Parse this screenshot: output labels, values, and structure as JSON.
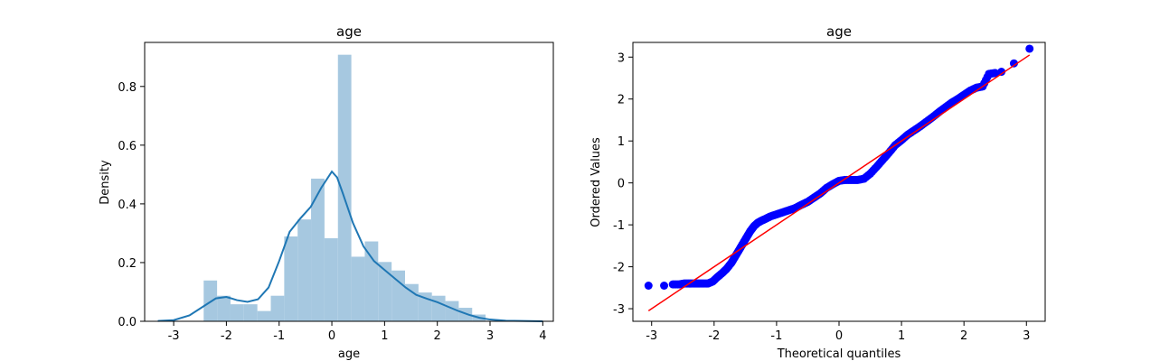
{
  "chart_data": [
    {
      "type": "bar",
      "title": "age",
      "xlabel": "age",
      "ylabel": "Density",
      "xlim": [
        -3.55,
        4.2
      ],
      "ylim": [
        0,
        0.95
      ],
      "xticks": [
        "-3",
        "-2",
        "-1",
        "0",
        "1",
        "2",
        "3",
        "4"
      ],
      "yticks": [
        "0.0",
        "0.2",
        "0.4",
        "0.6",
        "0.8"
      ],
      "grid": false,
      "bar_color": "#a6c8e0",
      "histogram": {
        "bin_width": 0.2546,
        "bin_start": -2.431,
        "values": [
          0.139,
          0.087,
          0.058,
          0.058,
          0.035,
          0.087,
          0.289,
          0.347,
          0.486,
          0.283,
          0.908,
          0.22,
          0.272,
          0.202,
          0.173,
          0.127,
          0.098,
          0.087,
          0.069,
          0.046,
          0.023
        ]
      },
      "kde": {
        "color": "#1f77b4",
        "x": [
          -3.3,
          -3.0,
          -2.7,
          -2.4,
          -2.2,
          -2.0,
          -1.8,
          -1.6,
          -1.4,
          -1.2,
          -1.0,
          -0.8,
          -0.6,
          -0.4,
          -0.2,
          0.0,
          0.1,
          0.2,
          0.4,
          0.6,
          0.8,
          1.0,
          1.2,
          1.4,
          1.6,
          1.8,
          2.0,
          2.2,
          2.4,
          2.6,
          2.8,
          3.0,
          3.3,
          3.6,
          4.0
        ],
        "y": [
          0.001,
          0.004,
          0.02,
          0.055,
          0.078,
          0.083,
          0.072,
          0.066,
          0.075,
          0.115,
          0.205,
          0.305,
          0.35,
          0.39,
          0.455,
          0.51,
          0.49,
          0.44,
          0.335,
          0.255,
          0.205,
          0.175,
          0.145,
          0.115,
          0.09,
          0.077,
          0.065,
          0.05,
          0.035,
          0.022,
          0.012,
          0.006,
          0.002,
          0.001,
          0.0
        ]
      }
    },
    {
      "type": "scatter",
      "title": "age",
      "xlabel": "Theoretical quantiles",
      "ylabel": "Ordered Values",
      "xlim": [
        -3.3,
        3.3
      ],
      "ylim": [
        -3.3,
        3.35
      ],
      "xticks": [
        "-3",
        "-2",
        "-1",
        "0",
        "1",
        "2",
        "3"
      ],
      "yticks": [
        "-3",
        "-2",
        "-1",
        "0",
        "1",
        "2",
        "3"
      ],
      "grid": false,
      "point_color": "#0000ff",
      "line_color": "#ff0000",
      "fit_line": {
        "slope": 1.0,
        "intercept": 0.0,
        "x_range": [
          -3.05,
          3.05
        ]
      },
      "points": {
        "x": [
          -3.05,
          -2.8,
          -2.66,
          -2.56,
          -2.48,
          -2.4,
          -2.32,
          -2.25,
          -2.18,
          -2.1,
          -2.02,
          -1.95,
          -1.87,
          -1.8,
          -1.72,
          -1.66,
          -1.6,
          -1.54,
          -1.48,
          -1.42,
          -1.36,
          -1.3,
          -1.24,
          -1.18,
          -1.1,
          -1.0,
          -0.9,
          -0.8,
          -0.7,
          -0.6,
          -0.5,
          -0.4,
          -0.3,
          -0.2,
          -0.1,
          0.0,
          0.1,
          0.2,
          0.3,
          0.4,
          0.5,
          0.6,
          0.7,
          0.8,
          0.9,
          1.0,
          1.1,
          1.2,
          1.3,
          1.4,
          1.5,
          1.6,
          1.7,
          1.8,
          1.9,
          2.0,
          2.1,
          2.2,
          2.3,
          2.4,
          2.5,
          2.6,
          2.8,
          3.05
        ],
        "y": [
          -2.45,
          -2.45,
          -2.42,
          -2.42,
          -2.4,
          -2.4,
          -2.4,
          -2.4,
          -2.4,
          -2.4,
          -2.35,
          -2.25,
          -2.15,
          -2.05,
          -1.9,
          -1.75,
          -1.6,
          -1.45,
          -1.3,
          -1.15,
          -1.03,
          -0.95,
          -0.9,
          -0.86,
          -0.8,
          -0.75,
          -0.7,
          -0.65,
          -0.6,
          -0.52,
          -0.45,
          -0.35,
          -0.25,
          -0.12,
          -0.03,
          0.05,
          0.07,
          0.07,
          0.07,
          0.1,
          0.22,
          0.38,
          0.55,
          0.72,
          0.9,
          1.02,
          1.15,
          1.25,
          1.35,
          1.46,
          1.57,
          1.69,
          1.8,
          1.91,
          2.0,
          2.1,
          2.2,
          2.27,
          2.3,
          2.6,
          2.62,
          2.65,
          2.85,
          3.2
        ]
      }
    }
  ]
}
